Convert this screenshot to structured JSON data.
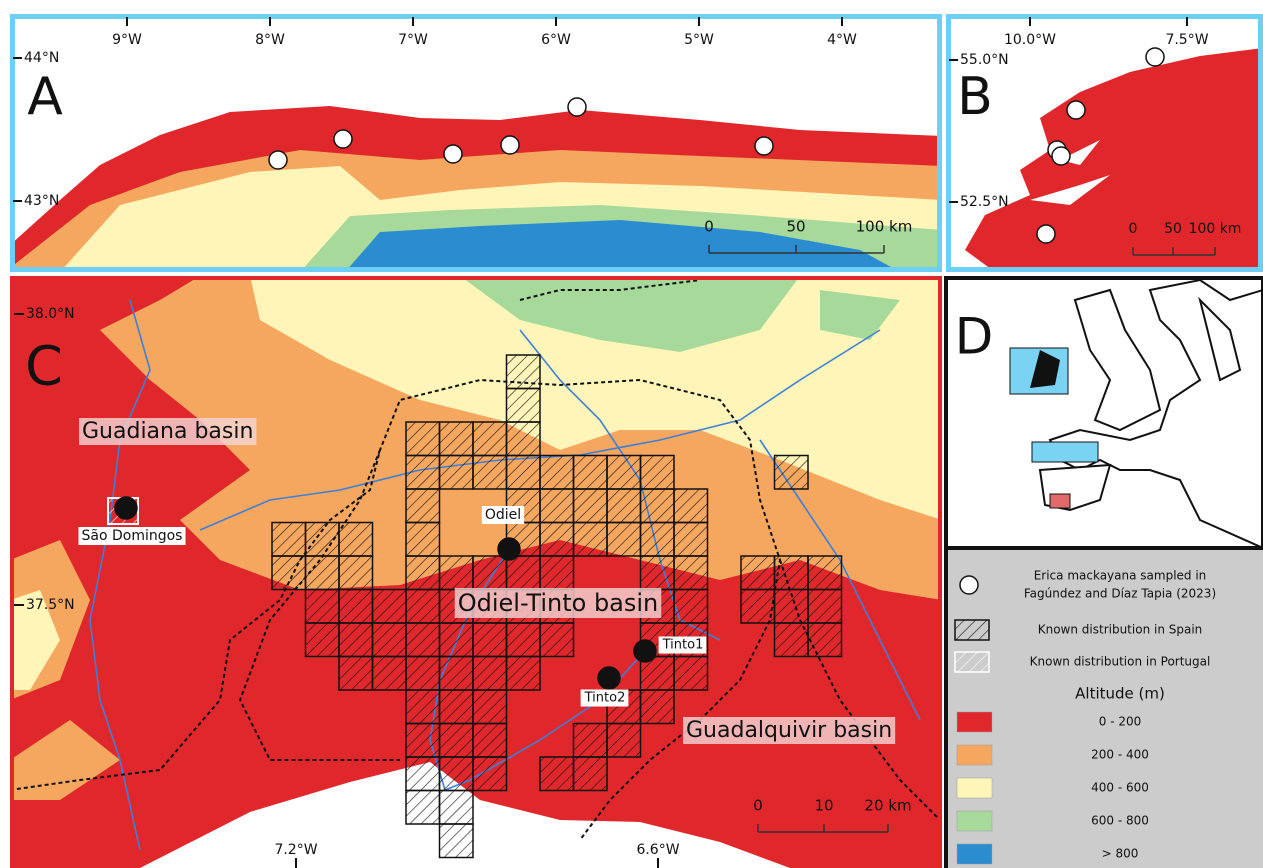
{
  "panel_a": {
    "label": "A",
    "longitudes": [
      "9°W",
      "8°W",
      "7°W",
      "6°W",
      "5°W",
      "4°W"
    ],
    "latitudes": [
      "44°N",
      "43°N"
    ],
    "scale_bar": [
      "0",
      "50",
      "100 km"
    ]
  },
  "panel_b": {
    "label": "B",
    "longitudes": [
      "10.0°W",
      "7.5°W"
    ],
    "latitudes": [
      "55.0°N",
      "52.5°N"
    ],
    "scale_bar": [
      "0",
      "50",
      "100 km"
    ]
  },
  "panel_c": {
    "label": "C",
    "longitudes": [
      "7.2°W",
      "6.6°W"
    ],
    "latitudes": [
      "38.0°N",
      "37.5°N"
    ],
    "basins": [
      "Guadiana basin",
      "Odiel-Tinto basin",
      "Guadalquivir basin"
    ],
    "sites": [
      "São Domingos",
      "Odiel",
      "Tinto1",
      "Tinto2"
    ],
    "scale_bar": [
      "0",
      "10",
      "20 km"
    ]
  },
  "panel_d": {
    "label": "D"
  },
  "legend": {
    "sampled": [
      "Erica mackayana sampled in",
      "Fagúndez and Díaz Tapia (2023)"
    ],
    "spain": "Known distribution in Spain",
    "portugal": "Known distribution in Portugal",
    "altitude_title": "Altitude (m)",
    "classes": [
      {
        "label": "0 - 200",
        "color": "#e0282c"
      },
      {
        "label": "200 - 400",
        "color": "#f6a75f"
      },
      {
        "label": "400 - 600",
        "color": "#fff5b8"
      },
      {
        "label": "600 - 800",
        "color": "#a7d99b"
      },
      {
        "label": "> 800",
        "color": "#2b8cd0"
      }
    ]
  }
}
